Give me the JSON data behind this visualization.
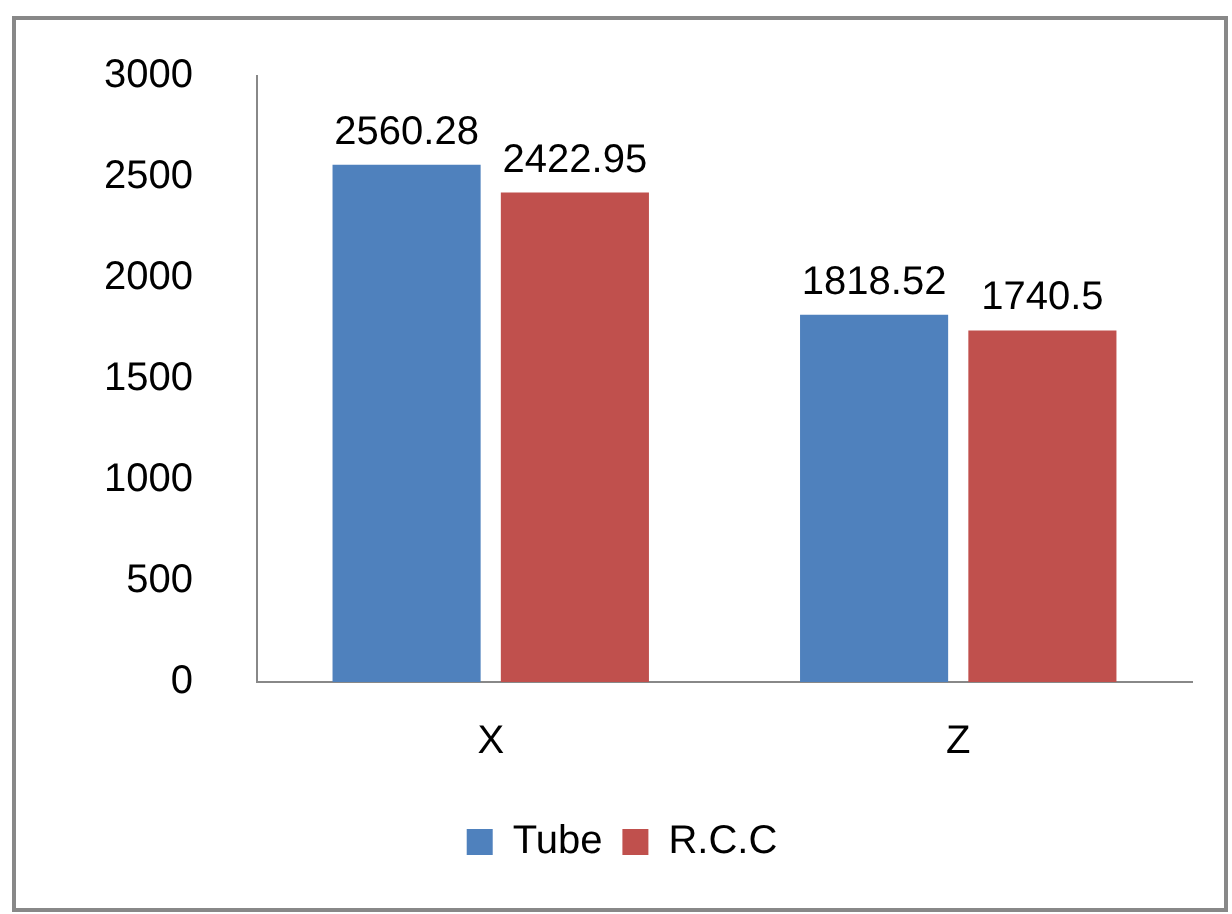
{
  "chart_data": {
    "type": "bar",
    "categories": [
      "X",
      "Z"
    ],
    "series": [
      {
        "name": "Tube",
        "color": "#4f81bd",
        "values": [
          2560.28,
          1818.52
        ]
      },
      {
        "name": "R.C.C",
        "color": "#c0504d",
        "values": [
          2422.95,
          1740.5
        ]
      }
    ],
    "ylim": [
      0,
      3000
    ],
    "yticks": [
      0,
      500,
      1000,
      1500,
      2000,
      2500,
      3000
    ],
    "grid": false,
    "legend": "bottom",
    "data_labels": true
  }
}
